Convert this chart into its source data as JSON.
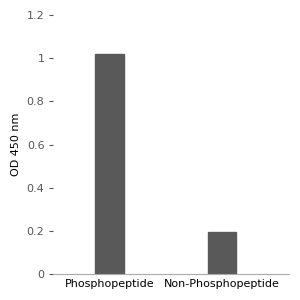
{
  "categories": [
    "Phosphopeptide",
    "Non-Phosphopeptide"
  ],
  "values": [
    1.02,
    0.195
  ],
  "bar_color": "#595959",
  "bar_width": 0.5,
  "ylabel": "OD 450 nm",
  "ylim": [
    0,
    1.2
  ],
  "yticks": [
    0,
    0.2,
    0.4,
    0.6,
    0.8,
    1.0,
    1.2
  ],
  "ytick_labels": [
    "0",
    "0.2",
    "0.4",
    "0.6",
    "0.8",
    "1",
    "1.2"
  ],
  "x_positions": [
    1,
    3
  ],
  "xlim": [
    0,
    4.2
  ],
  "background_color": "#ffffff",
  "tick_label_fontsize": 8,
  "axis_label_fontsize": 8,
  "spine_color": "#aaaaaa"
}
